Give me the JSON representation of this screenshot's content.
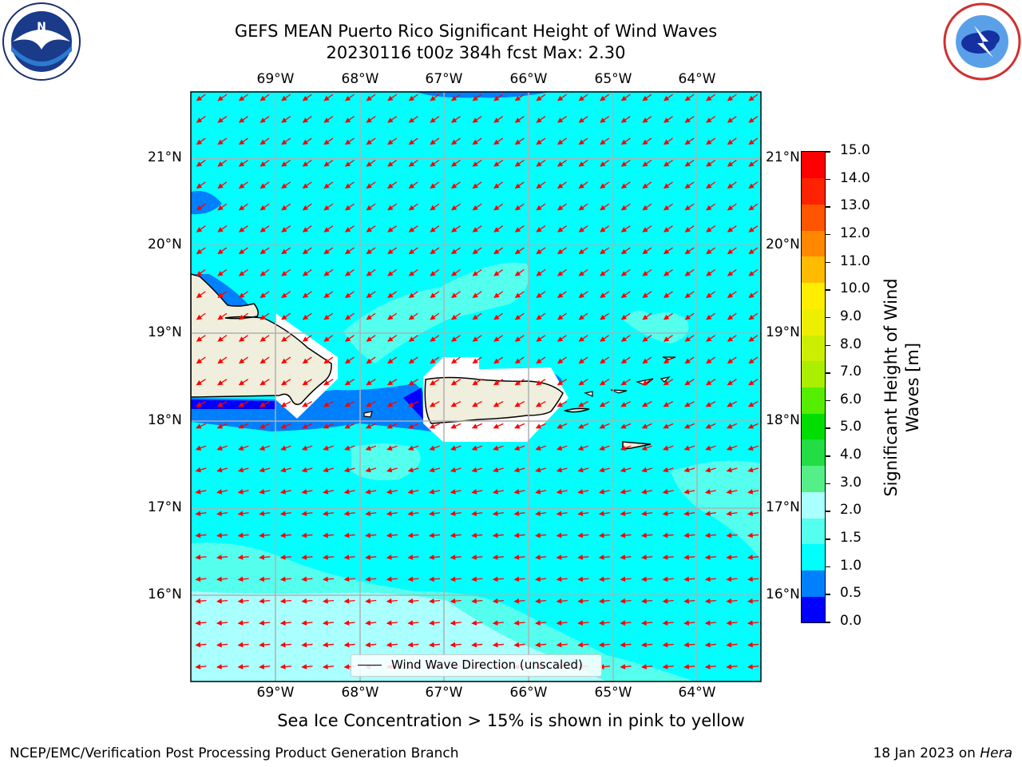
{
  "title_line1": "GEFS MEAN Puerto Rico Significant Height of Wind Waves",
  "title_line2": "20230116 t00z 384h fcst   Max: 2.30",
  "lon_labels": [
    "69°W",
    "68°W",
    "67°W",
    "66°W",
    "65°W",
    "64°W"
  ],
  "lat_labels": [
    "21°N",
    "20°N",
    "19°N",
    "18°N",
    "17°N",
    "16°N"
  ],
  "colorbar": {
    "label": "Significant Height of Wind Waves [m]",
    "ticks": [
      "15.0",
      "14.0",
      "13.0",
      "12.0",
      "11.0",
      "10.0",
      "9.0",
      "8.0",
      "7.0",
      "6.0",
      "5.0",
      "4.0",
      "3.0",
      "2.0",
      "1.5",
      "1.0",
      "0.5",
      "0.0"
    ],
    "colors": [
      "#0000ff",
      "#0080ff",
      "#00ffff",
      "#55ffee",
      "#aaffff",
      "#55ee88",
      "#22dd44",
      "#00dd00",
      "#55ee00",
      "#aaee00",
      "#ccee00",
      "#eeee00",
      "#ffee00",
      "#ffbb00",
      "#ff8800",
      "#ff5500",
      "#ff2200",
      "#ff0000"
    ]
  },
  "colors": {
    "ocean": "#00ffff",
    "ocean_light": "#55ffee",
    "ocean_lighter": "#aaffff",
    "shallow": "#0080ff",
    "deep": "#0000ff",
    "land": "#f0eedc",
    "arrow": "#ff0000",
    "grid": "#b0b0b0"
  },
  "legend_label": "Wind Wave Direction (unscaled)",
  "footer_note": "Sea Ice Concentration > 15% is shown in pink to yellow",
  "credit": "NCEP/EMC/Verification Post Processing Product Generation Branch",
  "date_text": "18 Jan 2023 on ",
  "date_host": "Hera",
  "logos": {
    "left": "noaa-logo",
    "right": "nws-logo"
  }
}
